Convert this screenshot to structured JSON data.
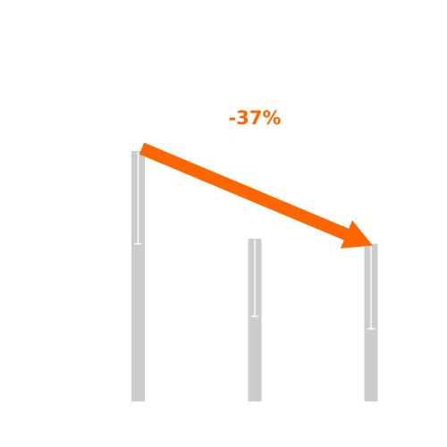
{
  "chart_data": {
    "type": "bar",
    "categories": [
      "",
      "",
      ""
    ],
    "values": [
      10,
      6.5,
      6.3
    ],
    "error_low": [
      6.3,
      3.4,
      2.9
    ],
    "ylim": [
      0,
      10
    ],
    "grid": false,
    "legend": "none",
    "annotation": {
      "text": "-37%",
      "from_index": 0,
      "to_index": 2
    },
    "colors": {
      "bar": "#cccccc",
      "error_bar": "#ffffff",
      "arrow": "#ff6600"
    }
  }
}
